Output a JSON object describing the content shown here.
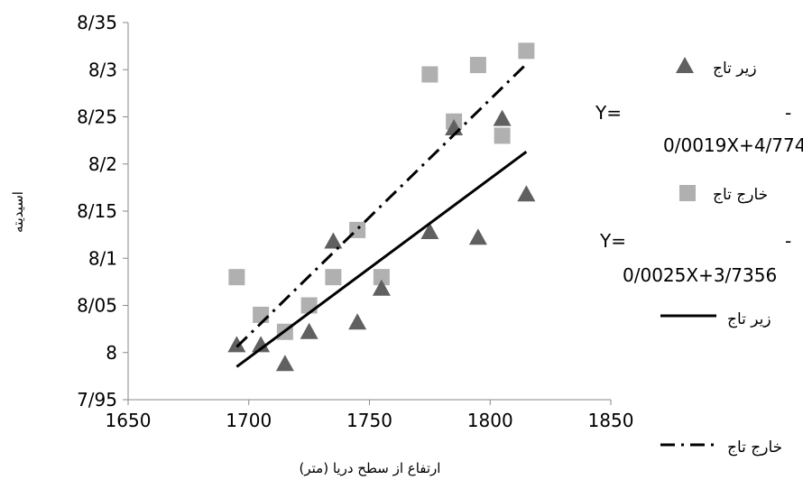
{
  "chart_data": {
    "type": "scatter",
    "xlabel": "ارتفاع از سطح دریا (متر)",
    "ylabel": "اسیدیته",
    "xlim": [
      1650,
      1850
    ],
    "ylim": [
      7.95,
      8.35
    ],
    "x_ticks": [
      "1650",
      "1700",
      "1750",
      "1800",
      "1850"
    ],
    "y_ticks": [
      "7/95",
      "8",
      "8/05",
      "8/1",
      "8/15",
      "8/2",
      "8/25",
      "8/3",
      "8/35"
    ],
    "grid": false,
    "legend_position": "right",
    "series": [
      {
        "name": "زیر تاج",
        "marker": "triangle",
        "color": "#606060",
        "x": [
          1695,
          1705,
          1715,
          1725,
          1735,
          1745,
          1755,
          1775,
          1785,
          1795,
          1805,
          1815
        ],
        "y": [
          8.008,
          8.008,
          7.988,
          8.022,
          8.118,
          8.032,
          8.068,
          8.128,
          8.238,
          8.122,
          8.248,
          8.168
        ]
      },
      {
        "name": "خارج تاج",
        "marker": "square",
        "color": "#b0b0b0",
        "x": [
          1695,
          1705,
          1715,
          1725,
          1735,
          1745,
          1755,
          1775,
          1785,
          1795,
          1805,
          1815
        ],
        "y": [
          8.08,
          8.04,
          8.022,
          8.05,
          8.08,
          8.13,
          8.08,
          8.295,
          8.245,
          8.305,
          8.23,
          8.32
        ]
      }
    ],
    "trendlines": [
      {
        "name": "زیر تاج",
        "style": "solid",
        "color": "#000000",
        "x": [
          1695,
          1815
        ],
        "y": [
          7.985,
          8.213
        ]
      },
      {
        "name": "خارج تاج",
        "style": "dash-dot",
        "color": "#000000",
        "x": [
          1695,
          1815
        ],
        "y": [
          8.006,
          8.306
        ]
      }
    ],
    "equations": [
      {
        "line1": "Y=",
        "dash": "-",
        "line2": "0/0019X+4/7742"
      },
      {
        "line1": "Y=",
        "dash": "-",
        "line2": "0/0025X+3/7356"
      }
    ]
  }
}
